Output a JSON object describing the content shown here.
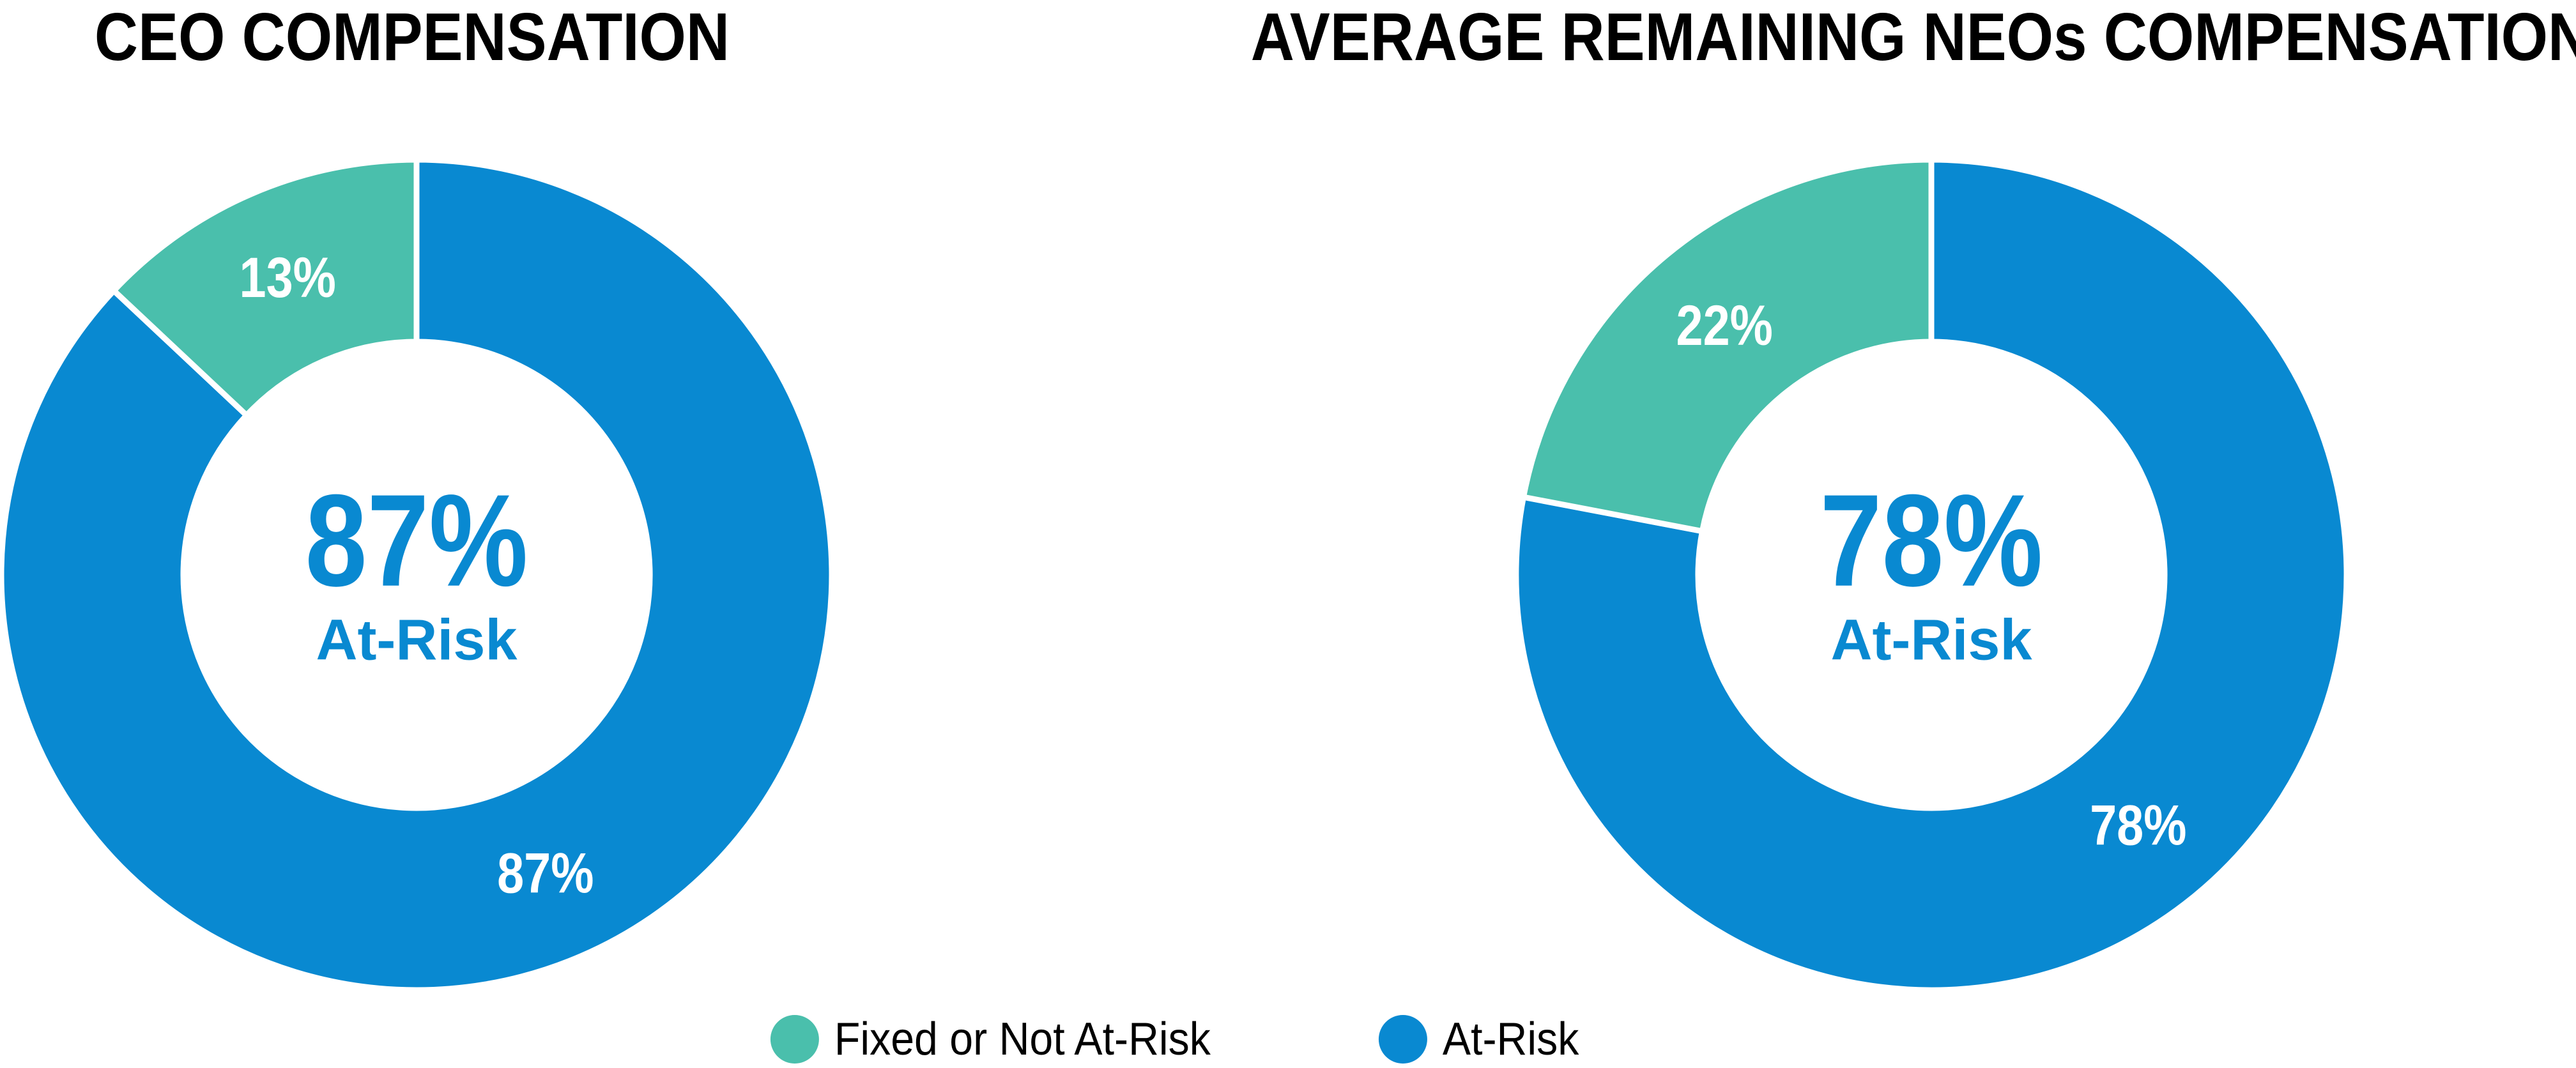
{
  "page": {
    "background": "#ffffff"
  },
  "colors": {
    "at_risk_blue": "#0989D1",
    "fixed_teal": "#4ABFAC",
    "title_black": "#000000",
    "slice_label_white": "#ffffff"
  },
  "legend": {
    "items": [
      {
        "label": "Fixed or Not At-Risk",
        "color": "#4ABFAC"
      },
      {
        "label": "At-Risk",
        "color": "#0989D1"
      }
    ]
  },
  "chart_data": [
    {
      "type": "pie",
      "variant": "donut",
      "title": "CEO COMPENSATION",
      "center_value": "87%",
      "center_label": "At-Risk",
      "start_angle": "top",
      "direction": "clockwise",
      "donut_hole_ratio": 0.56,
      "labels_position": "inside",
      "slices": [
        {
          "name": "At-Risk",
          "value": 87,
          "label": "87%",
          "color": "#0989D1"
        },
        {
          "name": "Fixed or Not At-Risk",
          "value": 13,
          "label": "13%",
          "color": "#4ABFAC"
        }
      ]
    },
    {
      "type": "pie",
      "variant": "donut",
      "title": "AVERAGE REMAINING NEOs COMPENSATION",
      "center_value": "78%",
      "center_label": "At-Risk",
      "start_angle": "top",
      "direction": "clockwise",
      "donut_hole_ratio": 0.56,
      "labels_position": "inside",
      "slices": [
        {
          "name": "At-Risk",
          "value": 78,
          "label": "78%",
          "color": "#0989D1"
        },
        {
          "name": "Fixed or Not At-Risk",
          "value": 22,
          "label": "22%",
          "color": "#4ABFAC"
        }
      ]
    }
  ]
}
